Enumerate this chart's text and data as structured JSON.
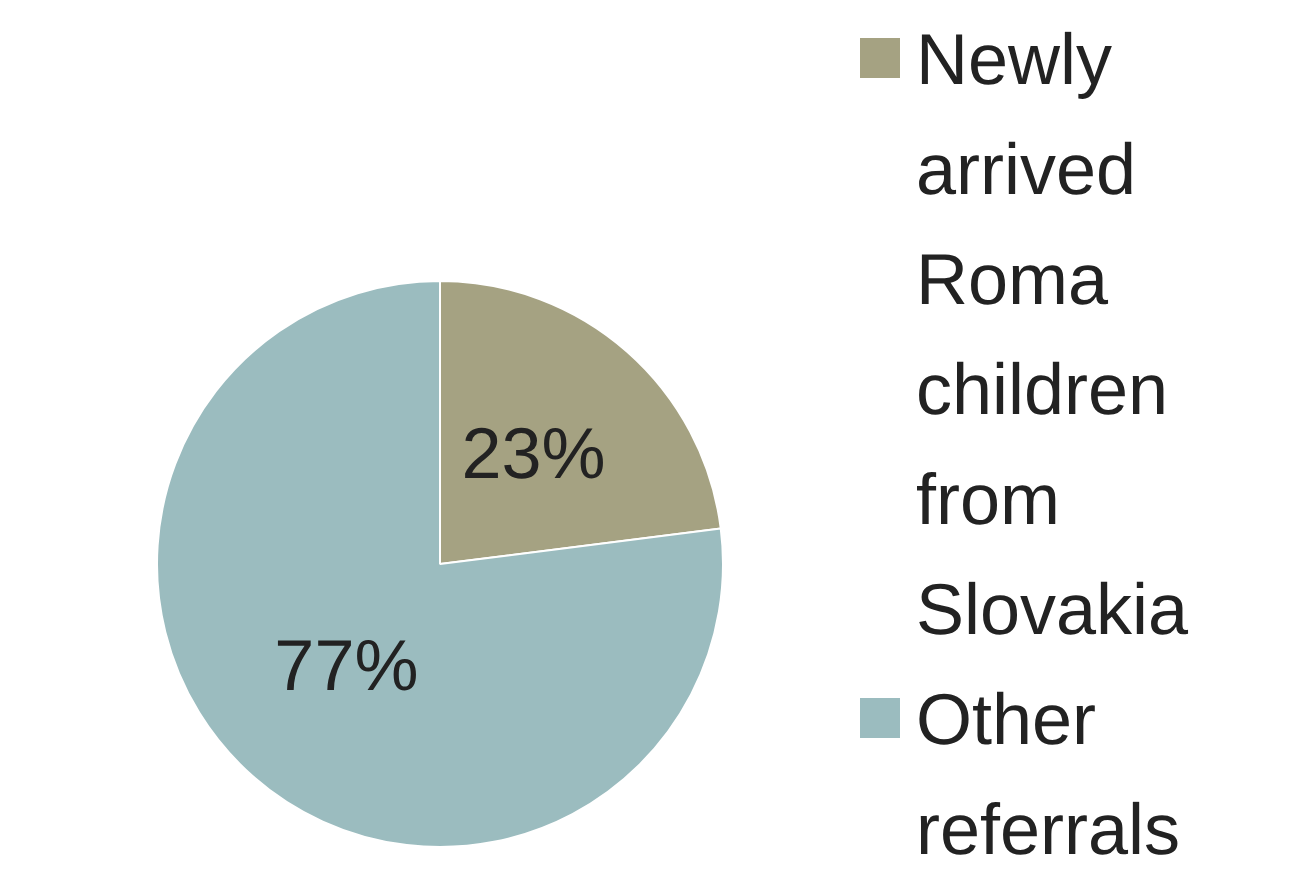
{
  "chart_data": {
    "type": "pie",
    "categories": [
      "Newly arrived Roma children from Slovakia",
      "Other referrals"
    ],
    "values": [
      23,
      77
    ],
    "colors": [
      "#a5a282",
      "#9bbcbf"
    ],
    "value_labels": [
      "23%",
      "77%"
    ],
    "legend": "right"
  }
}
